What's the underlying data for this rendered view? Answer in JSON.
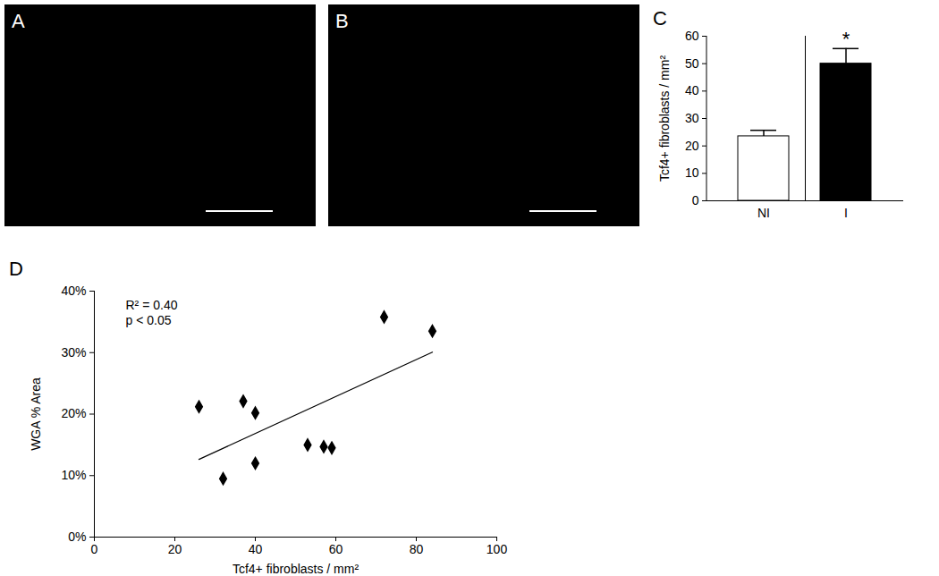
{
  "chart_data": [
    {
      "type": "image",
      "panel": "A"
    },
    {
      "type": "image",
      "panel": "B"
    },
    {
      "type": "bar",
      "panel": "C",
      "categories": [
        "NI",
        "I"
      ],
      "values": [
        23.5,
        50
      ],
      "errors": [
        2.2,
        5.5
      ],
      "colors": [
        "#ffffff",
        "#000000"
      ],
      "ylim": [
        0,
        60
      ],
      "yticks": [
        0,
        10,
        20,
        30,
        40,
        50,
        60
      ],
      "ylabel": "Tcf4+ fibroblasts / mm²",
      "annotations": [
        {
          "category": "I",
          "text": "*"
        }
      ]
    },
    {
      "type": "scatter",
      "panel": "D",
      "x": [
        26,
        32,
        37,
        40,
        40,
        53,
        57,
        59,
        72,
        84
      ],
      "values": [
        21.2,
        9.5,
        22.1,
        20.2,
        12,
        15,
        14.7,
        14.5,
        35.8,
        33.5
      ],
      "color": "#000000",
      "marker": "diamond",
      "xlim": [
        0,
        100
      ],
      "xticks": [
        0,
        20,
        40,
        60,
        80,
        100
      ],
      "ylim": [
        0,
        40
      ],
      "yticks": [
        {
          "value": 0,
          "label": "0%"
        },
        {
          "value": 10,
          "label": "10%"
        },
        {
          "value": 20,
          "label": "20%"
        },
        {
          "value": 30,
          "label": "30%"
        },
        {
          "value": 40,
          "label": "40%"
        }
      ],
      "xlabel": "Tcf4+ fibroblasts / mm²",
      "ylabel": "WGA % Area",
      "trendline": {
        "x": [
          26,
          84
        ],
        "values": [
          12.64,
          30.07
        ]
      },
      "annotations": [
        "R² = 0.40",
        "p < 0.05"
      ]
    }
  ]
}
